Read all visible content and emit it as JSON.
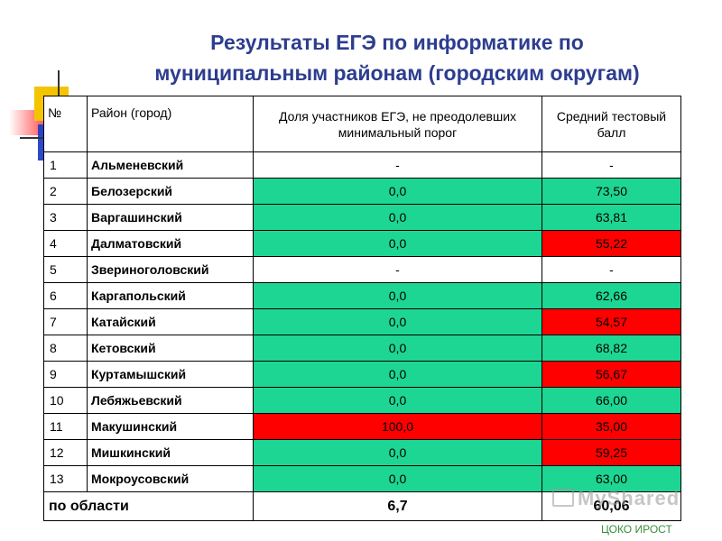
{
  "title_line1": "Результаты ЕГЭ по информатике по",
  "title_line2": "муниципальным районам (городским округам)",
  "table": {
    "headers": {
      "num": "№",
      "district": "Район (город)",
      "share": "Доля участников ЕГЭ, не преодолевших минимальный порог",
      "score": "Средний тестовый балл"
    },
    "rows": [
      {
        "num": "1",
        "name": "Альменевский",
        "share": "-",
        "score": "-",
        "share_color": "none",
        "score_color": "none"
      },
      {
        "num": "2",
        "name": "Белозерский",
        "share": "0,0",
        "score": "73,50",
        "share_color": "green",
        "score_color": "green"
      },
      {
        "num": "3",
        "name": "Варгашинский",
        "share": "0,0",
        "score": "63,81",
        "share_color": "green",
        "score_color": "green"
      },
      {
        "num": "4",
        "name": "Далматовский",
        "share": "0,0",
        "score": "55,22",
        "share_color": "green",
        "score_color": "red"
      },
      {
        "num": "5",
        "name": "Звериноголовский",
        "share": "-",
        "score": "-",
        "share_color": "none",
        "score_color": "none"
      },
      {
        "num": "6",
        "name": "Каргапольский",
        "share": "0,0",
        "score": "62,66",
        "share_color": "green",
        "score_color": "green"
      },
      {
        "num": "7",
        "name": "Катайский",
        "share": "0,0",
        "score": "54,57",
        "share_color": "green",
        "score_color": "red"
      },
      {
        "num": "8",
        "name": "Кетовский",
        "share": "0,0",
        "score": "68,82",
        "share_color": "green",
        "score_color": "green"
      },
      {
        "num": "9",
        "name": "Куртамышский",
        "share": "0,0",
        "score": "56,67",
        "share_color": "green",
        "score_color": "red"
      },
      {
        "num": "10",
        "name": "Лебяжьевский",
        "share": "0,0",
        "score": "66,00",
        "share_color": "green",
        "score_color": "green"
      },
      {
        "num": "11",
        "name": "Макушинский",
        "share": "100,0",
        "score": "35,00",
        "share_color": "red",
        "score_color": "red"
      },
      {
        "num": "12",
        "name": "Мишкинский",
        "share": "0,0",
        "score": "59,25",
        "share_color": "green",
        "score_color": "red"
      },
      {
        "num": "13",
        "name": "Мокроусовский",
        "share": "0,0",
        "score": "63,00",
        "share_color": "green",
        "score_color": "green"
      }
    ],
    "total": {
      "label": "по области",
      "share": "6,7",
      "score": "60,06"
    }
  },
  "colors": {
    "green": "#1ed693",
    "red": "#ff0000",
    "title": "#2d3d8f"
  },
  "watermark": "MyShared",
  "footer": "ЦОКО ИРОСТ"
}
